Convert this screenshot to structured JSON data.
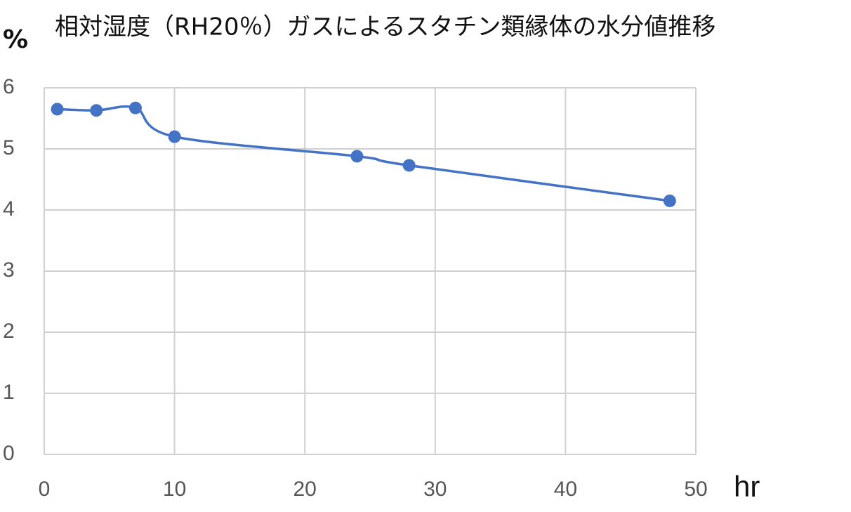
{
  "chart_data": {
    "type": "line",
    "title": "相対湿度（RH20％）ガスによるスタチン類縁体の水分値推移",
    "y_label": "%",
    "x_label": "hr",
    "x": [
      1,
      4,
      7,
      10,
      24,
      28,
      48
    ],
    "series": [
      {
        "name": "水分値",
        "color": "#4472c4",
        "values": [
          5.65,
          5.63,
          5.67,
          5.2,
          4.88,
          4.73,
          4.15
        ]
      }
    ],
    "xlim": [
      0,
      50
    ],
    "xticks": [
      0,
      10,
      20,
      30,
      40,
      50
    ],
    "ylim": [
      0,
      6
    ],
    "yticks": [
      0,
      1,
      2,
      3,
      4,
      5,
      6
    ],
    "grid": true,
    "smooth": true
  }
}
